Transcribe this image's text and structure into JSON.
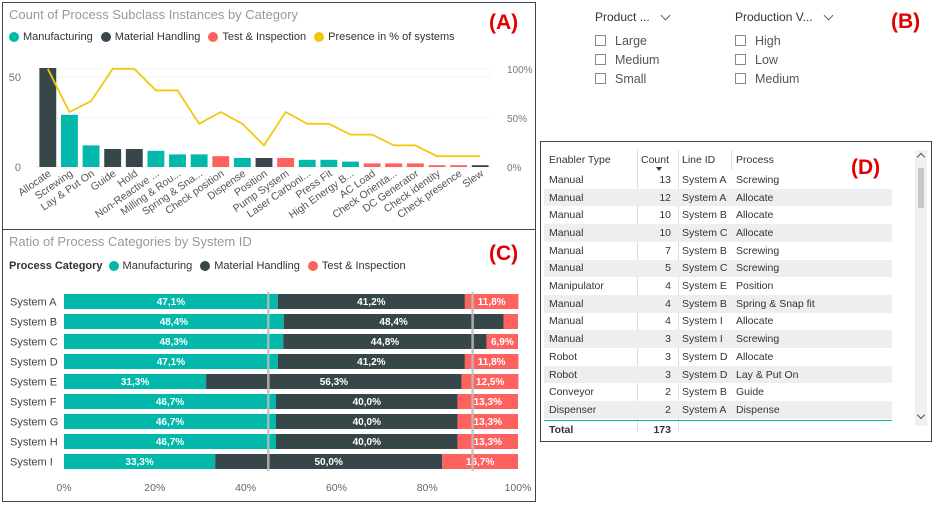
{
  "panel_a": {
    "title": "Count of Process Subclass Instances by Category",
    "letter": "(A)",
    "legend": [
      {
        "label": "Manufacturing",
        "color": "#01B8AA"
      },
      {
        "label": "Material Handling",
        "color": "#374649"
      },
      {
        "label": "Test & Inspection",
        "color": "#FD625E"
      },
      {
        "label": "Presence in % of systems",
        "color": "#F2C80F"
      }
    ]
  },
  "panel_b": {
    "letter": "(B)",
    "slicers": [
      {
        "title": "Product ...",
        "options": [
          "Large",
          "Medium",
          "Small"
        ]
      },
      {
        "title": "Production V...",
        "options": [
          "High",
          "Low",
          "Medium"
        ]
      }
    ]
  },
  "panel_c": {
    "title": "Ratio of Process Categories by System ID",
    "letter": "(C)",
    "legend_title": "Process Category",
    "legend": [
      {
        "label": "Manufacturing",
        "color": "#01B8AA"
      },
      {
        "label": "Material Handling",
        "color": "#374649"
      },
      {
        "label": "Test & Inspection",
        "color": "#FD625E"
      }
    ]
  },
  "panel_d": {
    "letter": "(D)",
    "headers": [
      "Enabler Type",
      "Count",
      "Line ID",
      "Process"
    ],
    "rows": [
      [
        "Manual",
        "13",
        "System A",
        "Screwing"
      ],
      [
        "Manual",
        "12",
        "System A",
        "Allocate"
      ],
      [
        "Manual",
        "10",
        "System B",
        "Allocate"
      ],
      [
        "Manual",
        "10",
        "System C",
        "Allocate"
      ],
      [
        "Manual",
        "7",
        "System B",
        "Screwing"
      ],
      [
        "Manual",
        "5",
        "System C",
        "Screwing"
      ],
      [
        "Manipulator",
        "4",
        "System E",
        "Position"
      ],
      [
        "Manual",
        "4",
        "System B",
        "Spring & Snap fit"
      ],
      [
        "Manual",
        "4",
        "System I",
        "Allocate"
      ],
      [
        "Manual",
        "3",
        "System I",
        "Screwing"
      ],
      [
        "Robot",
        "3",
        "System D",
        "Allocate"
      ],
      [
        "Robot",
        "3",
        "System D",
        "Lay & Put On"
      ],
      [
        "Conveyor",
        "2",
        "System B",
        "Guide"
      ],
      [
        "Dispenser",
        "2",
        "System A",
        "Dispense"
      ]
    ],
    "total_label": "Total",
    "total_value": "173"
  },
  "chart_data": [
    {
      "type": "bar",
      "title": "Count of Process Subclass Instances by Category",
      "categories": [
        "Allocate",
        "Screwing",
        "Lay & Put On",
        "Guide",
        "Hold",
        "Non-Reactive ...",
        "Milling & Rou...",
        "Spring & Sna...",
        "Check position",
        "Dispense",
        "Position",
        "Pump System",
        "Laser Carboni...",
        "Press Fit",
        "High Energy B...",
        "AC Load",
        "Check Orienta...",
        "DC Generator",
        "Check identity",
        "Check presence",
        "Slew"
      ],
      "category_colors": [
        "#374649",
        "#01B8AA",
        "#01B8AA",
        "#374649",
        "#374649",
        "#01B8AA",
        "#01B8AA",
        "#01B8AA",
        "#FD625E",
        "#01B8AA",
        "#374649",
        "#FD625E",
        "#01B8AA",
        "#01B8AA",
        "#01B8AA",
        "#FD625E",
        "#FD625E",
        "#FD625E",
        "#FD625E",
        "#FD625E",
        "#374649"
      ],
      "values": [
        55,
        29,
        12,
        10,
        10,
        9,
        7,
        7,
        6,
        5,
        5,
        5,
        4,
        4,
        3,
        2,
        2,
        2,
        1,
        1,
        1
      ],
      "line_series": {
        "name": "Presence in % of systems",
        "color": "#F2C80F",
        "values": [
          100,
          56,
          67,
          100,
          100,
          78,
          78,
          44,
          56,
          44,
          22,
          56,
          44,
          44,
          33,
          33,
          22,
          22,
          11,
          11,
          11
        ]
      },
      "y_ticks": [
        "0",
        "50"
      ],
      "y2_ticks": [
        "0%",
        "50%",
        "100%"
      ],
      "ylim": [
        0,
        60
      ],
      "y2lim": [
        0,
        110
      ]
    },
    {
      "type": "bar",
      "orientation": "horizontal",
      "stacked": "100%",
      "title": "Ratio of Process Categories by System ID",
      "categories": [
        "System A",
        "System B",
        "System C",
        "System D",
        "System E",
        "System F",
        "System G",
        "System H",
        "System I"
      ],
      "series": [
        {
          "name": "Manufacturing",
          "color": "#01B8AA",
          "values": [
            47.1,
            48.4,
            48.3,
            47.1,
            31.3,
            46.7,
            46.7,
            46.7,
            33.3
          ],
          "labels": [
            "47,1%",
            "48,4%",
            "48,3%",
            "47,1%",
            "31,3%",
            "46,7%",
            "46,7%",
            "46,7%",
            "33,3%"
          ]
        },
        {
          "name": "Material Handling",
          "color": "#374649",
          "values": [
            41.2,
            48.4,
            44.8,
            41.2,
            56.3,
            40.0,
            40.0,
            40.0,
            50.0
          ],
          "labels": [
            "41,2%",
            "48,4%",
            "44,8%",
            "41,2%",
            "56,3%",
            "40,0%",
            "40,0%",
            "40,0%",
            "50,0%"
          ]
        },
        {
          "name": "Test & Inspection",
          "color": "#FD625E",
          "values": [
            11.8,
            3.2,
            6.9,
            11.8,
            12.5,
            13.3,
            13.3,
            13.3,
            16.7
          ],
          "labels": [
            "11,8%",
            "",
            "6,9%",
            "11,8%",
            "12,5%",
            "13,3%",
            "13,3%",
            "13,3%",
            "16,7%"
          ]
        }
      ],
      "x_ticks": [
        "0%",
        "20%",
        "40%",
        "60%",
        "80%",
        "100%"
      ],
      "reference_lines": [
        45,
        90
      ]
    }
  ]
}
